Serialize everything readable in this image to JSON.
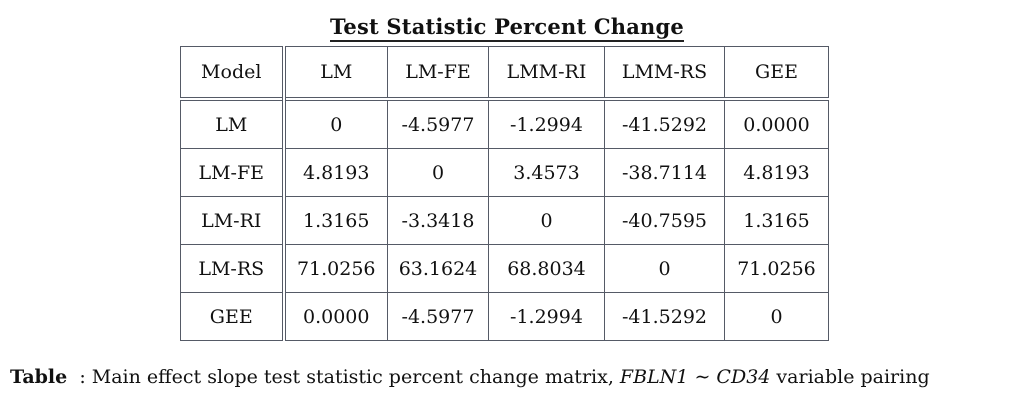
{
  "title": "Test Statistic Percent Change",
  "table": {
    "corner": "Model",
    "columns": [
      "LM",
      "LM-FE",
      "LMM-RI",
      "LMM-RS",
      "GEE"
    ],
    "rows": [
      {
        "label": "LM",
        "values": [
          "0",
          "-4.5977",
          "-1.2994",
          "-41.5292",
          "0.0000"
        ]
      },
      {
        "label": "LM-FE",
        "values": [
          "4.8193",
          "0",
          "3.4573",
          "-38.7114",
          "4.8193"
        ]
      },
      {
        "label": "LM-RI",
        "values": [
          "1.3165",
          "-3.3418",
          "0",
          "-40.7595",
          "1.3165"
        ]
      },
      {
        "label": "LM-RS",
        "values": [
          "71.0256",
          "63.1624",
          "68.8034",
          "0",
          "71.0256"
        ]
      },
      {
        "label": "GEE",
        "values": [
          "0.0000",
          "-4.5977",
          "-1.2994",
          "-41.5292",
          "0"
        ]
      }
    ]
  },
  "caption": {
    "lead": "Table",
    "text": ": Main effect slope test statistic percent change matrix,",
    "var1": "FBLN1",
    "sim": "∼",
    "var2": "CD34",
    "tail": "variable pairing"
  }
}
